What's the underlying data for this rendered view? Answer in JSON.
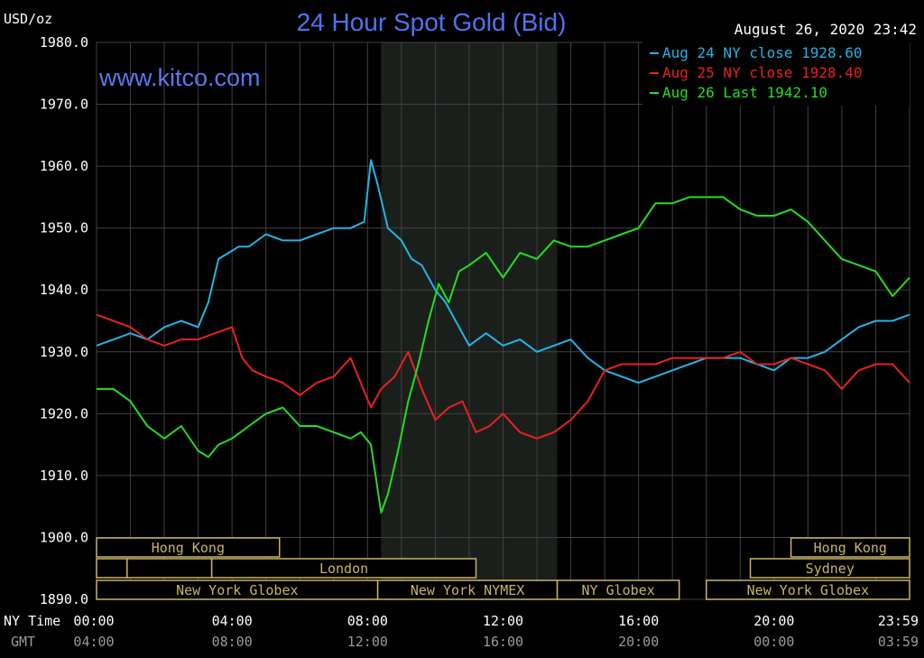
{
  "chart_data": {
    "type": "line",
    "title": "24 Hour Spot Gold (Bid)",
    "ylabel": "USD/oz",
    "timestamp": "August 26, 2020 23:42",
    "watermark": "www.kitco.com",
    "ylim": [
      1890,
      1980
    ],
    "yticks": [
      "1980.0",
      "1970.0",
      "1960.0",
      "1950.0",
      "1940.0",
      "1930.0",
      "1920.0",
      "1910.0",
      "1900.0",
      "1890.0"
    ],
    "xlim": [
      0,
      24
    ],
    "row_labels": {
      "ny": "NY Time",
      "gmt": "GMT"
    },
    "xticks_ny": [
      "00:00",
      "04:00",
      "08:00",
      "12:00",
      "16:00",
      "20:00",
      "23:59"
    ],
    "xticks_gmt": [
      "04:00",
      "08:00",
      "12:00",
      "16:00",
      "20:00",
      "00:00",
      "03:59"
    ],
    "xtick_hours": [
      0,
      4,
      8,
      12,
      16,
      20,
      24
    ],
    "shaded_region": [
      8.4,
      13.6
    ],
    "grid": true,
    "legend_position": "top-right",
    "colors": {
      "background": "#000000",
      "grid": "#404040",
      "axis_text": "#ffffff",
      "title": "#4f74f0",
      "watermark": "#5a78ee",
      "session_box": "#c8b464",
      "shade": "#1b1f1b"
    },
    "sessions": [
      {
        "label": "Hong Kong",
        "start": 0,
        "end": 5.4,
        "row": 1
      },
      {
        "label": "Hong Kong",
        "start": 20.5,
        "end": 24,
        "row": 1
      },
      {
        "label": "",
        "start": 0,
        "end": 0.9,
        "row": 2
      },
      {
        "label": "",
        "start": 0.9,
        "end": 3.4,
        "row": 2
      },
      {
        "label": "London",
        "start": 3.4,
        "end": 11.2,
        "row": 2
      },
      {
        "label": "Sydney",
        "start": 19.3,
        "end": 24,
        "row": 2
      },
      {
        "label": "New York Globex",
        "start": 0,
        "end": 8.3,
        "row": 3
      },
      {
        "label": "New York NYMEX",
        "start": 8.3,
        "end": 13.6,
        "row": 3
      },
      {
        "label": "NY Globex",
        "start": 13.6,
        "end": 17.2,
        "row": 3
      },
      {
        "label": "New York Globex",
        "start": 18.0,
        "end": 24,
        "row": 3
      }
    ],
    "series": [
      {
        "name": "Aug 24 NY close 1928.60",
        "color": "#22b4e6",
        "x": [
          0,
          0.5,
          1,
          1.5,
          2,
          2.5,
          3,
          3.3,
          3.6,
          3.9,
          4.2,
          4.5,
          5,
          5.5,
          6,
          6.5,
          7,
          7.5,
          7.9,
          8.1,
          8.3,
          8.6,
          9,
          9.3,
          9.6,
          10,
          10.3,
          10.6,
          11,
          11.5,
          12,
          12.5,
          13,
          13.5,
          14,
          14.5,
          15,
          15.5,
          16,
          16.5,
          17,
          17.5,
          18,
          18.5,
          19,
          19.5,
          20,
          20.5,
          21,
          21.5,
          22,
          22.5,
          23,
          23.5,
          24
        ],
        "values": [
          1931,
          1932,
          1933,
          1932,
          1934,
          1935,
          1934,
          1938,
          1945,
          1946,
          1947,
          1947,
          1949,
          1948,
          1948,
          1949,
          1950,
          1950,
          1951,
          1961,
          1957,
          1950,
          1948,
          1945,
          1944,
          1940,
          1938,
          1935,
          1931,
          1933,
          1931,
          1932,
          1930,
          1931,
          1932,
          1929,
          1927,
          1926,
          1925,
          1926,
          1927,
          1928,
          1929,
          1929,
          1929,
          1928,
          1927,
          1929,
          1929,
          1930,
          1932,
          1934,
          1935,
          1935,
          1936
        ]
      },
      {
        "name": "Aug 25 NY close 1928.40",
        "color": "#e8221e",
        "x": [
          0,
          0.5,
          1,
          1.5,
          2,
          2.5,
          3,
          3.5,
          4,
          4.3,
          4.6,
          5,
          5.5,
          6,
          6.5,
          7,
          7.5,
          7.8,
          8.1,
          8.4,
          8.8,
          9.2,
          9.6,
          10,
          10.4,
          10.8,
          11.2,
          11.6,
          12,
          12.5,
          13,
          13.5,
          14,
          14.5,
          15,
          15.5,
          16,
          16.5,
          17,
          17.5,
          18,
          18.5,
          19,
          19.5,
          20,
          20.5,
          21,
          21.5,
          22,
          22.5,
          23,
          23.5,
          24
        ],
        "values": [
          1936,
          1935,
          1934,
          1932,
          1931,
          1932,
          1932,
          1933,
          1934,
          1929,
          1927,
          1926,
          1925,
          1923,
          1925,
          1926,
          1929,
          1925,
          1921,
          1924,
          1926,
          1930,
          1924,
          1919,
          1921,
          1922,
          1917,
          1918,
          1920,
          1917,
          1916,
          1917,
          1919,
          1922,
          1927,
          1928,
          1928,
          1928,
          1929,
          1929,
          1929,
          1929,
          1930,
          1928,
          1928,
          1929,
          1928,
          1927,
          1924,
          1927,
          1928,
          1928,
          1925
        ]
      },
      {
        "name": "Aug 26 Last 1942.10",
        "color": "#22dd22",
        "x": [
          0,
          0.5,
          1,
          1.5,
          2,
          2.5,
          3,
          3.3,
          3.6,
          4,
          4.5,
          5,
          5.5,
          6,
          6.5,
          7,
          7.5,
          7.8,
          8.1,
          8.4,
          8.6,
          8.9,
          9.2,
          9.5,
          9.8,
          10.1,
          10.4,
          10.7,
          11,
          11.5,
          12,
          12.5,
          13,
          13.5,
          14,
          14.5,
          15,
          15.5,
          16,
          16.5,
          17,
          17.5,
          18,
          18.5,
          19,
          19.5,
          20,
          20.5,
          21,
          21.5,
          22,
          22.5,
          23,
          23.5,
          24
        ],
        "values": [
          1924,
          1924,
          1922,
          1918,
          1916,
          1918,
          1914,
          1913,
          1915,
          1916,
          1918,
          1920,
          1921,
          1918,
          1918,
          1917,
          1916,
          1917,
          1915,
          1904,
          1907,
          1914,
          1922,
          1928,
          1935,
          1941,
          1938,
          1943,
          1944,
          1946,
          1942,
          1946,
          1945,
          1948,
          1947,
          1947,
          1948,
          1949,
          1950,
          1954,
          1954,
          1955,
          1955,
          1955,
          1953,
          1952,
          1952,
          1953,
          1951,
          1948,
          1945,
          1944,
          1943,
          1939,
          1942
        ]
      }
    ]
  }
}
